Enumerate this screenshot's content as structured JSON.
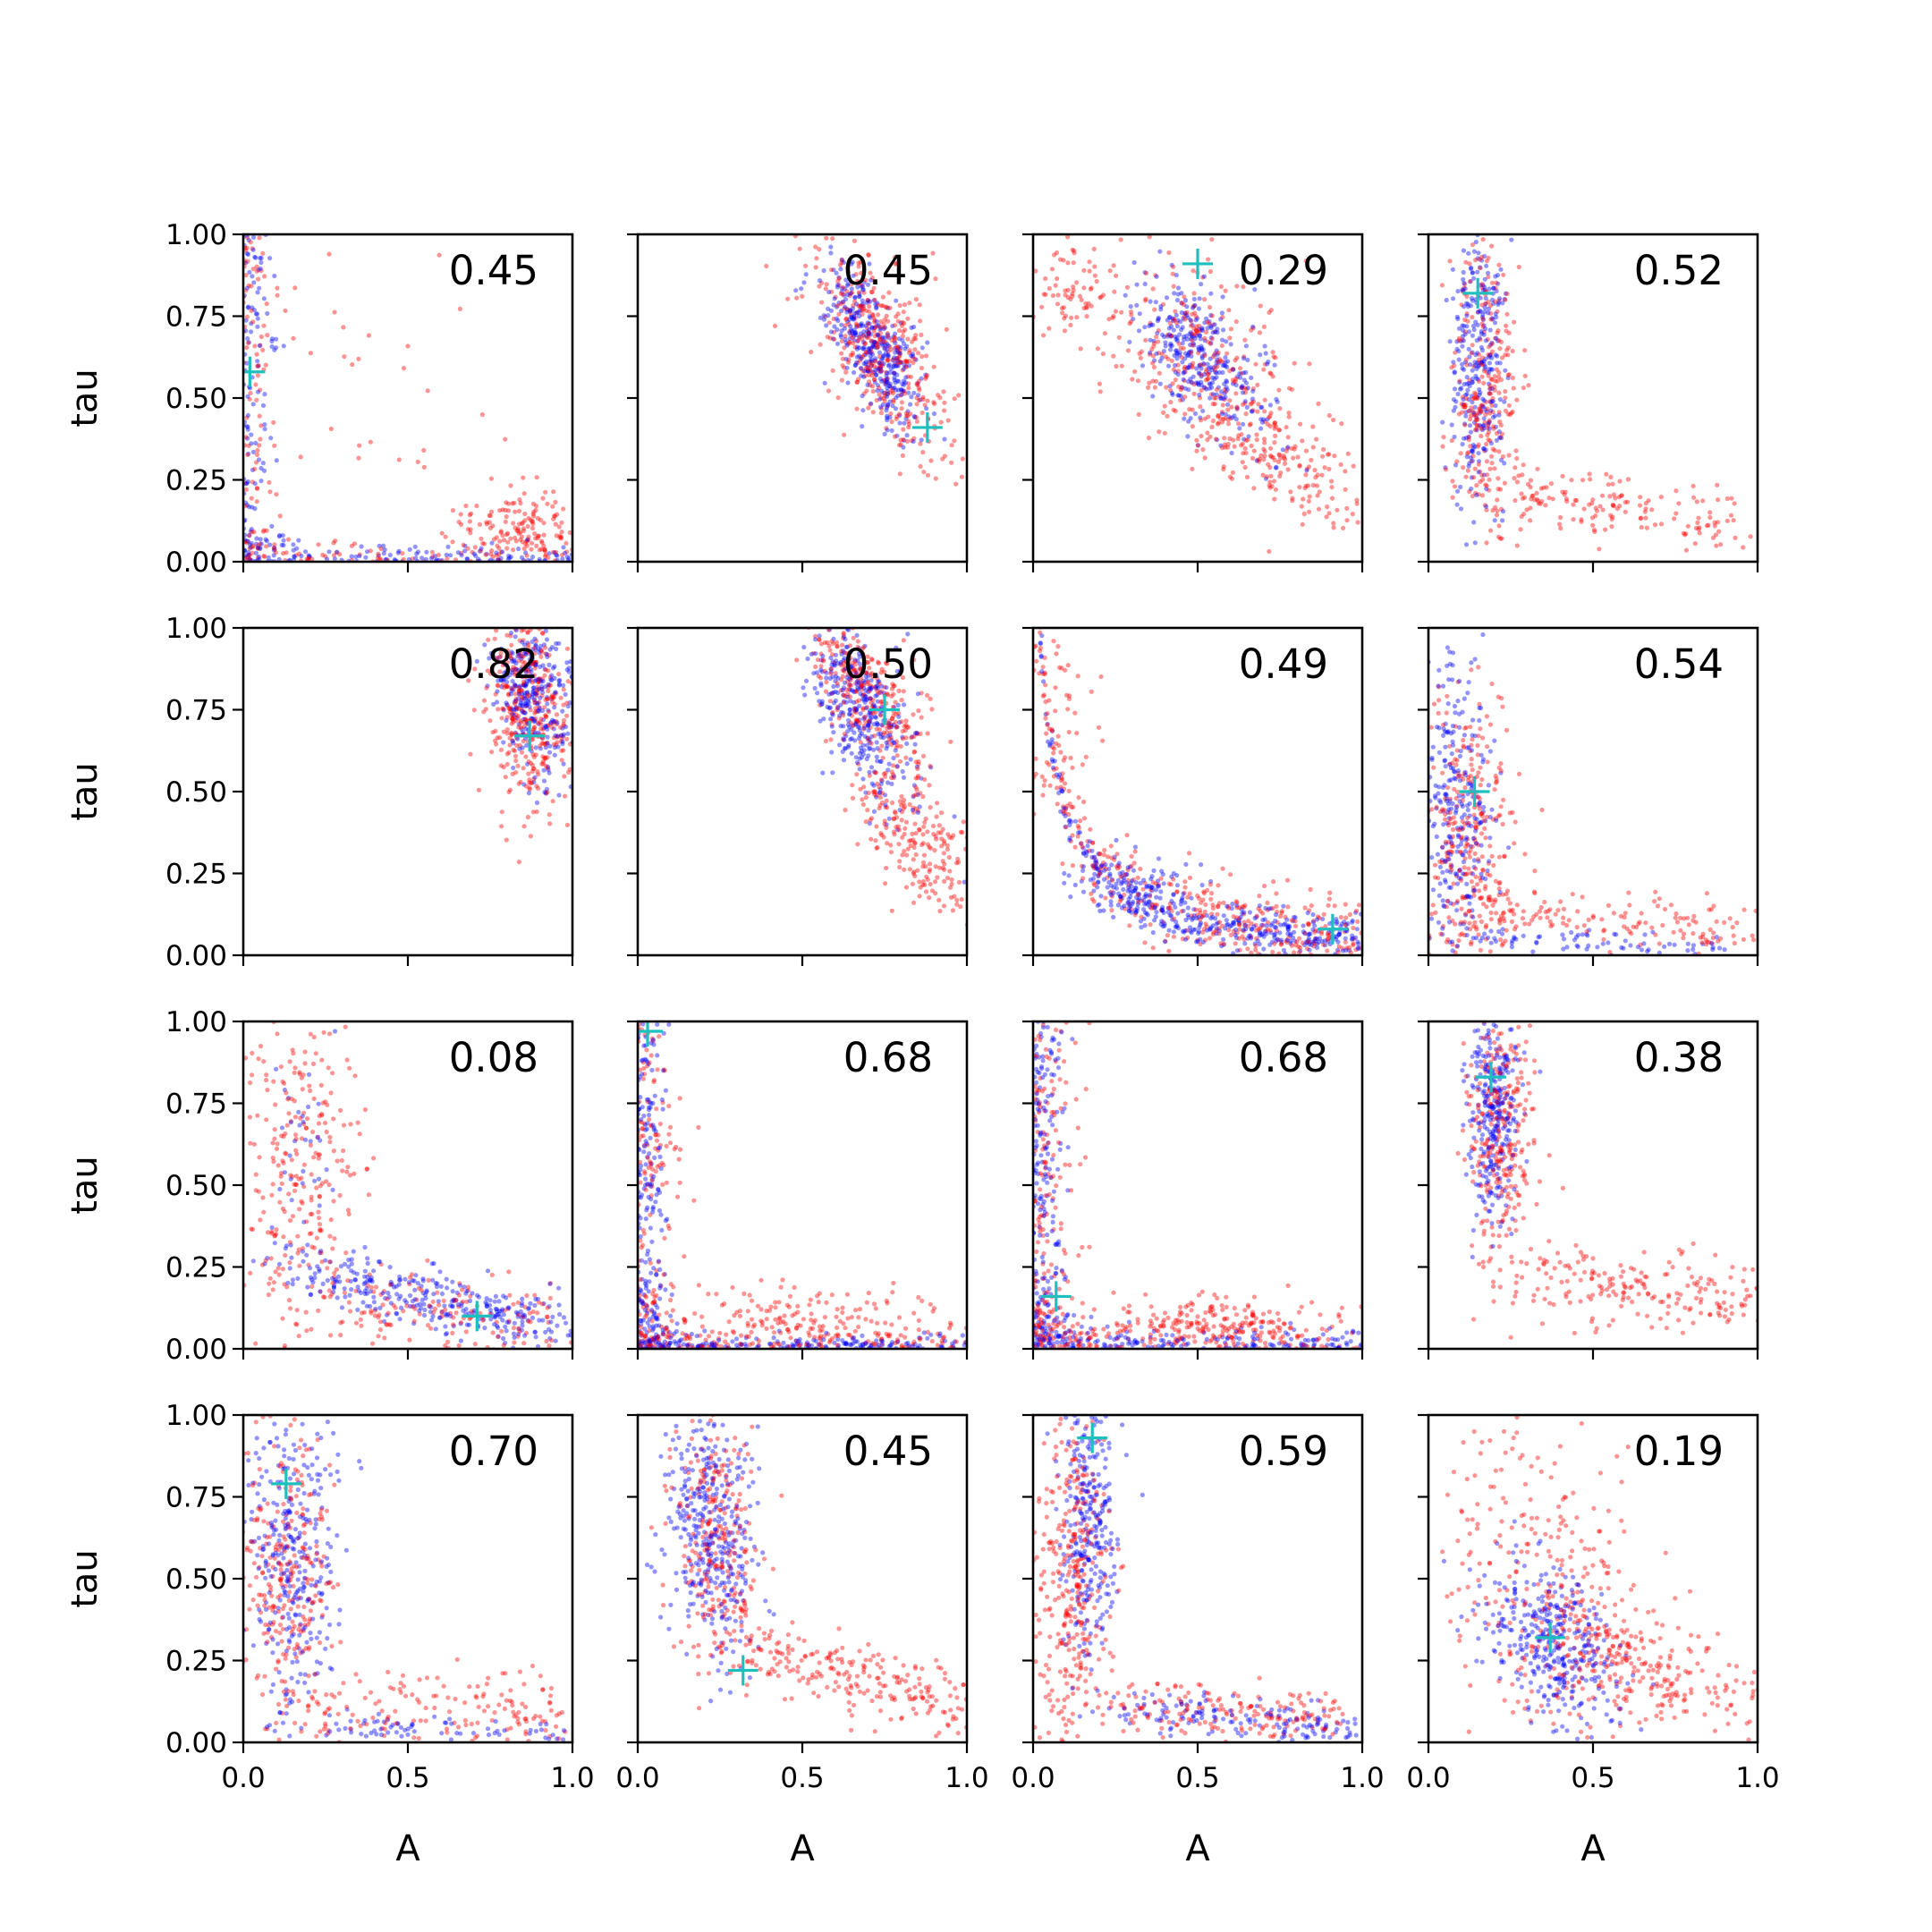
{
  "chart_data": {
    "type": "scatter",
    "layout": {
      "rows": 4,
      "cols": 4
    },
    "xlabel": "A",
    "ylabel": "tau",
    "xlim": [
      0.0,
      1.0
    ],
    "ylim": [
      0.0,
      1.0
    ],
    "x_tick_labels": [
      "0.0",
      "0.5",
      "1.0"
    ],
    "y_tick_labels": [
      "0.00",
      "0.25",
      "0.50",
      "0.75",
      "1.00"
    ],
    "series_colors": {
      "red": "#ff0000",
      "blue": "#0000ff",
      "marker": "#1fbfbf"
    },
    "panels": [
      {
        "label": "0.45",
        "marker": {
          "A": 0.02,
          "tau": 0.58
        }
      },
      {
        "label": "0.45",
        "marker": {
          "A": 0.88,
          "tau": 0.41
        }
      },
      {
        "label": "0.29",
        "marker": {
          "A": 0.5,
          "tau": 0.91
        }
      },
      {
        "label": "0.52",
        "marker": {
          "A": 0.15,
          "tau": 0.82
        }
      },
      {
        "label": "0.82",
        "marker": {
          "A": 0.87,
          "tau": 0.67
        }
      },
      {
        "label": "0.50",
        "marker": {
          "A": 0.75,
          "tau": 0.75
        }
      },
      {
        "label": "0.49",
        "marker": {
          "A": 0.91,
          "tau": 0.08
        }
      },
      {
        "label": "0.54",
        "marker": {
          "A": 0.14,
          "tau": 0.5
        }
      },
      {
        "label": "0.08",
        "marker": {
          "A": 0.71,
          "tau": 0.1
        }
      },
      {
        "label": "0.68",
        "marker": {
          "A": 0.03,
          "tau": 0.97
        }
      },
      {
        "label": "0.68",
        "marker": {
          "A": 0.07,
          "tau": 0.16
        }
      },
      {
        "label": "0.38",
        "marker": {
          "A": 0.19,
          "tau": 0.83
        }
      },
      {
        "label": "0.70",
        "marker": {
          "A": 0.13,
          "tau": 0.79
        }
      },
      {
        "label": "0.45",
        "marker": {
          "A": 0.32,
          "tau": 0.22
        }
      },
      {
        "label": "0.59",
        "marker": {
          "A": 0.18,
          "tau": 0.93
        }
      },
      {
        "label": "0.19",
        "marker": {
          "A": 0.37,
          "tau": 0.32
        }
      }
    ]
  }
}
